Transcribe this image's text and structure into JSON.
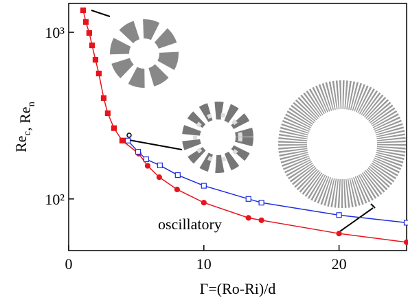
{
  "chart_data": {
    "type": "line",
    "log_y": true,
    "xlabel": "Γ=(Ro-Ri)/d",
    "ylabel": [
      {
        "text": "Re",
        "sub": "c"
      },
      {
        "text": ",  Re",
        "sub": "n"
      }
    ],
    "annotation": "oscillatory",
    "xlim": [
      0,
      25
    ],
    "xticks": [
      0,
      10,
      20
    ],
    "ylim": [
      49,
      1490
    ],
    "yticks": [
      {
        "value": 100,
        "label": "10²"
      },
      {
        "value": 1000,
        "label": "10³"
      }
    ],
    "series": [
      {
        "color": "#e8141c",
        "marker": "square",
        "filled": true,
        "x": [
          1.07,
          1.27,
          1.52,
          1.73,
          1.98,
          2.23,
          2.59,
          2.89,
          3.35,
          3.96
        ],
        "values": [
          1355,
          1153,
          990,
          835,
          684,
          566,
          403,
          327,
          266,
          224
        ]
      },
      {
        "color": "#e8141c",
        "marker": "circle",
        "filled": true,
        "x": [
          3.96,
          5.18,
          5.84,
          6.7,
          8.02,
          10,
          13.3,
          14.26,
          20,
          25
        ],
        "values": [
          224,
          187,
          158,
          135,
          114,
          95,
          77,
          74.5,
          62,
          55
        ]
      },
      {
        "color": "#1c2ee0",
        "marker": "square",
        "filled": false,
        "x": [
          4.37,
          5.13,
          5.74,
          6.75,
          8.07,
          10,
          13.3,
          14.26,
          20,
          25
        ],
        "values": [
          224,
          192,
          173,
          159,
          139,
          120,
          100,
          95,
          80,
          72
        ]
      }
    ]
  }
}
